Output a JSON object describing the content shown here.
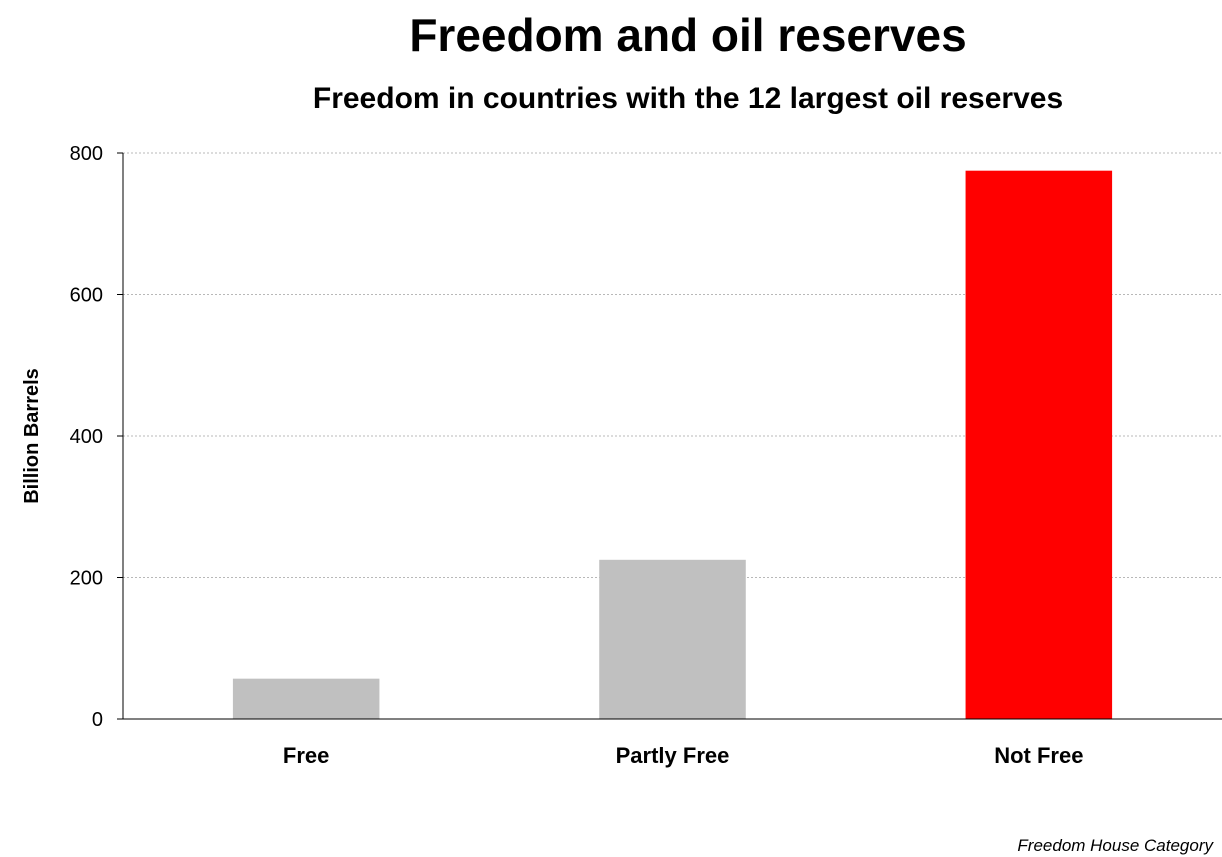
{
  "chart_data": {
    "type": "bar",
    "title": "Freedom and oil reserves",
    "subtitle": "Freedom in countries with the 12 largest oil reserves",
    "ylabel": "Billion Barrels",
    "xlabel": "Freedom House Category",
    "categories": [
      "Free",
      "Partly Free",
      "Not Free"
    ],
    "values": [
      57,
      225,
      775
    ],
    "bar_colors": [
      "#c0c0c0",
      "#c0c0c0",
      "#ff0000"
    ],
    "ylim": [
      0,
      800
    ],
    "yticks": [
      0,
      200,
      400,
      600,
      800
    ],
    "grid": true,
    "legend": "none"
  }
}
